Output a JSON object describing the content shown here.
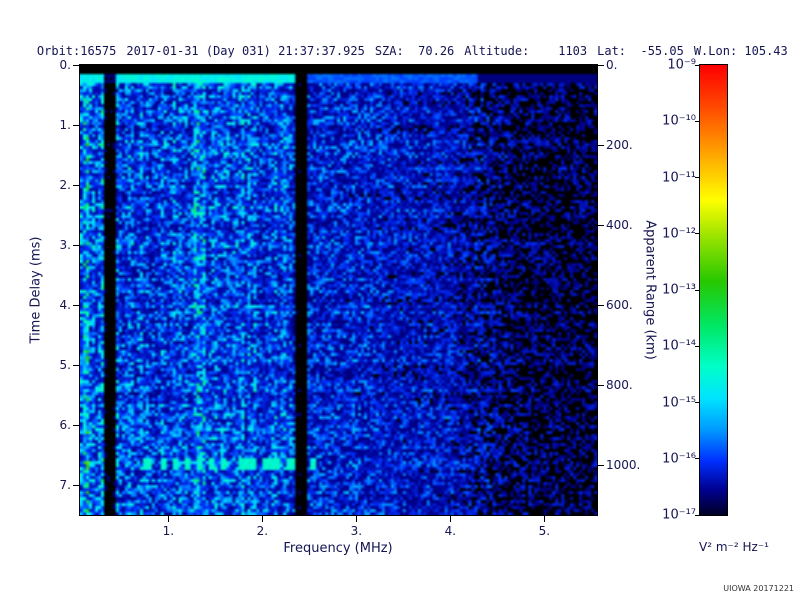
{
  "header": {
    "segments": [
      "Orbit:16575",
      "2017-01-31 (Day 031) 21:37:37.925",
      "SZA:  70.26",
      "Altitude:    1103",
      "Lat:  -55.05",
      "W.Lon: 105.43"
    ]
  },
  "footer": {
    "credit": "UIOWA 20171221"
  },
  "chart_data": {
    "type": "heatmap",
    "title": "",
    "xlabel": "Frequency (MHz)",
    "ylabel_left": "Time Delay (ms)",
    "ylabel_right": "Apparent Range (km)",
    "x_range_mhz": [
      0.06,
      5.56
    ],
    "x_tick_values": [
      1,
      2,
      3,
      4,
      5
    ],
    "x_tick_labels": [
      "1.",
      "2.",
      "3.",
      "4.",
      "5."
    ],
    "y_range_ms": [
      0,
      7.5
    ],
    "y_tick_values_ms": [
      0,
      1,
      2,
      3,
      4,
      5,
      6,
      7
    ],
    "y_tick_labels_ms": [
      "0.",
      "1.",
      "2.",
      "3.",
      "4.",
      "5.",
      "6.",
      "7."
    ],
    "right_range_km": [
      0,
      1125
    ],
    "right_tick_values_km": [
      0,
      200,
      400,
      600,
      800,
      1000
    ],
    "right_tick_labels": [
      "0.",
      "200.",
      "400.",
      "600.",
      "800.",
      "1000."
    ],
    "colorbar": {
      "unit": "V² m⁻² Hz⁻¹",
      "labels": [
        "10⁻⁹",
        "10⁻¹⁰",
        "10⁻¹¹",
        "10⁻¹²",
        "10⁻¹³",
        "10⁻¹⁴",
        "10⁻¹⁵",
        "10⁻¹⁶",
        "10⁻¹⁷"
      ],
      "scale_max_exp": -9,
      "scale_min_exp": -17,
      "stops": [
        {
          "t": 0.0,
          "color": "#000028"
        },
        {
          "t": 0.055,
          "color": "#000090"
        },
        {
          "t": 0.12,
          "color": "#0030ff"
        },
        {
          "t": 0.19,
          "color": "#009cff"
        },
        {
          "t": 0.26,
          "color": "#00e4ff"
        },
        {
          "t": 0.33,
          "color": "#00ffc8"
        },
        {
          "t": 0.42,
          "color": "#00e866"
        },
        {
          "t": 0.52,
          "color": "#28c800"
        },
        {
          "t": 0.62,
          "color": "#9ce400"
        },
        {
          "t": 0.7,
          "color": "#ffff00"
        },
        {
          "t": 0.8,
          "color": "#ffa800"
        },
        {
          "t": 0.9,
          "color": "#ff5000"
        },
        {
          "t": 1.0,
          "color": "#ff0000"
        }
      ]
    },
    "features": {
      "seed": 42,
      "black_threshold": 0.1,
      "background_level_points": [
        [
          0.06,
          0.55
        ],
        [
          0.24,
          0.5
        ],
        [
          0.45,
          0.5
        ],
        [
          1.0,
          0.52
        ],
        [
          2.0,
          0.5
        ],
        [
          2.35,
          0.45
        ],
        [
          2.5,
          0.4
        ],
        [
          3.0,
          0.38
        ],
        [
          3.5,
          0.33
        ],
        [
          4.0,
          0.3
        ],
        [
          4.3,
          0.24
        ],
        [
          4.7,
          0.17
        ],
        [
          5.56,
          0.15
        ]
      ],
      "interference_notches_mhz": [
        [
          0.24,
          0.265
        ],
        [
          0.3,
          0.43
        ],
        [
          2.36,
          2.47
        ]
      ],
      "bright_columns_mhz": [
        {
          "band": [
            0.1,
            0.145
          ],
          "boost": 1.6
        },
        {
          "band": [
            0.19,
            0.23
          ],
          "boost": 1.4
        },
        {
          "band": [
            0.265,
            0.3
          ],
          "boost": 1.35
        },
        {
          "band": [
            1.24,
            1.38
          ],
          "boost": 1.45
        },
        {
          "band": [
            1.56,
            1.66
          ],
          "boost": 1.2
        }
      ],
      "saturated_top_bar_ms": [
        0,
        0.14
      ],
      "bright_top_row_ms": [
        0.14,
        0.3
      ],
      "echo_trace": {
        "delay_ms": 6.62,
        "half_thickness_ms": 0.07,
        "segments": [
          {
            "band": [
              0.72,
              0.8
            ],
            "dash": [
              1,
              0
            ]
          },
          {
            "band": [
              0.92,
              1.58
            ],
            "dash": [
              2,
              2
            ]
          },
          {
            "band": [
              1.74,
              2.55
            ],
            "dash": [
              6,
              2
            ]
          }
        ]
      }
    }
  }
}
